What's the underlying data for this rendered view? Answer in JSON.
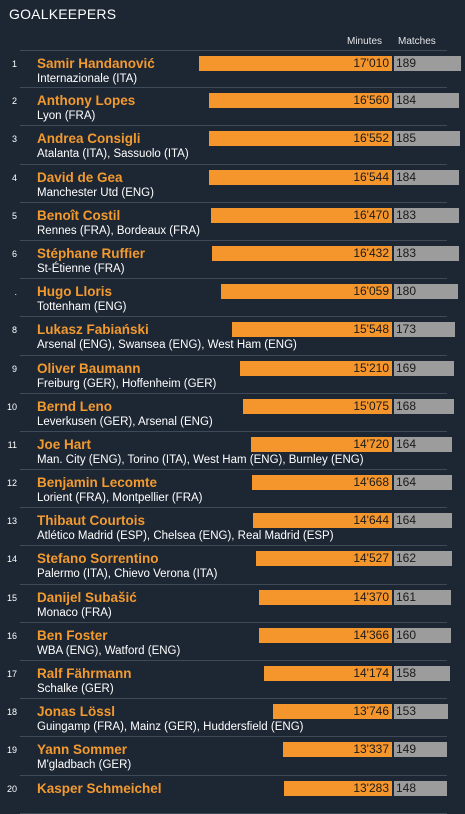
{
  "title": "GOALKEEPERS",
  "column_headers": {
    "minutes": "Minutes",
    "matches": "Matches"
  },
  "colors": {
    "background": "#1d2633",
    "minutes_bar": "#f5962d",
    "matches_bar": "#9c9c9c",
    "name": "#f39a2f"
  },
  "chart_data": {
    "type": "bar",
    "orientation": "horizontal",
    "title": "GOALKEEPERS",
    "series": [
      {
        "name": "Minutes",
        "values": [
          17010,
          16560,
          16552,
          16544,
          16470,
          16432,
          16059,
          15548,
          15210,
          15075,
          14720,
          14668,
          14644,
          14527,
          14370,
          14366,
          14174,
          13746,
          13337,
          13283
        ]
      },
      {
        "name": "Matches",
        "values": [
          189,
          184,
          185,
          184,
          183,
          183,
          180,
          173,
          169,
          168,
          164,
          164,
          164,
          162,
          161,
          160,
          158,
          153,
          149,
          148
        ]
      }
    ],
    "rows": [
      {
        "rank": "1",
        "name": "Samir Handanović",
        "clubs": "Internazionale (ITA)",
        "minutes": 17010,
        "minutes_label": "17'010",
        "matches": 189,
        "matches_label": "189"
      },
      {
        "rank": "2",
        "name": "Anthony Lopes",
        "clubs": "Lyon (FRA)",
        "minutes": 16560,
        "minutes_label": "16'560",
        "matches": 184,
        "matches_label": "184"
      },
      {
        "rank": "3",
        "name": "Andrea Consigli",
        "clubs": "Atalanta (ITA), Sassuolo (ITA)",
        "minutes": 16552,
        "minutes_label": "16'552",
        "matches": 185,
        "matches_label": "185"
      },
      {
        "rank": "4",
        "name": "David de Gea",
        "clubs": "Manchester Utd (ENG)",
        "minutes": 16544,
        "minutes_label": "16'544",
        "matches": 184,
        "matches_label": "184"
      },
      {
        "rank": "5",
        "name": "Benoît Costil",
        "clubs": "Rennes (FRA), Bordeaux (FRA)",
        "minutes": 16470,
        "minutes_label": "16'470",
        "matches": 183,
        "matches_label": "183"
      },
      {
        "rank": "6",
        "name": "Stéphane Ruffier",
        "clubs": "St-Étienne (FRA)",
        "minutes": 16432,
        "minutes_label": "16'432",
        "matches": 183,
        "matches_label": "183"
      },
      {
        "rank": ".",
        "name": "Hugo Lloris",
        "clubs": "Tottenham (ENG)",
        "minutes": 16059,
        "minutes_label": "16'059",
        "matches": 180,
        "matches_label": "180"
      },
      {
        "rank": "8",
        "name": "Lukasz Fabiański",
        "clubs": "Arsenal (ENG), Swansea (ENG), West Ham (ENG)",
        "minutes": 15548,
        "minutes_label": "15'548",
        "matches": 173,
        "matches_label": "173"
      },
      {
        "rank": "9",
        "name": "Oliver Baumann",
        "clubs": "Freiburg (GER), Hoffenheim (GER)",
        "minutes": 15210,
        "minutes_label": "15'210",
        "matches": 169,
        "matches_label": "169"
      },
      {
        "rank": "10",
        "name": "Bernd Leno",
        "clubs": "Leverkusen (GER), Arsenal (ENG)",
        "minutes": 15075,
        "minutes_label": "15'075",
        "matches": 168,
        "matches_label": "168"
      },
      {
        "rank": "11",
        "name": "Joe Hart",
        "clubs": "Man. City (ENG), Torino (ITA), West Ham (ENG), Burnley (ENG)",
        "minutes": 14720,
        "minutes_label": "14'720",
        "matches": 164,
        "matches_label": "164"
      },
      {
        "rank": "12",
        "name": "Benjamin Lecomte",
        "clubs": "Lorient (FRA), Montpellier (FRA)",
        "minutes": 14668,
        "minutes_label": "14'668",
        "matches": 164,
        "matches_label": "164"
      },
      {
        "rank": "13",
        "name": "Thibaut Courtois",
        "clubs": "Atlético Madrid (ESP), Chelsea (ENG), Real Madrid (ESP)",
        "minutes": 14644,
        "minutes_label": "14'644",
        "matches": 164,
        "matches_label": "164"
      },
      {
        "rank": "14",
        "name": "Stefano Sorrentino",
        "clubs": "Palermo (ITA), Chievo Verona (ITA)",
        "minutes": 14527,
        "minutes_label": "14'527",
        "matches": 162,
        "matches_label": "162"
      },
      {
        "rank": "15",
        "name": "Danijel Subašić",
        "clubs": "Monaco (FRA)",
        "minutes": 14370,
        "minutes_label": "14'370",
        "matches": 161,
        "matches_label": "161"
      },
      {
        "rank": "16",
        "name": "Ben Foster",
        "clubs": "WBA (ENG), Watford (ENG)",
        "minutes": 14366,
        "minutes_label": "14'366",
        "matches": 160,
        "matches_label": "160"
      },
      {
        "rank": "17",
        "name": "Ralf Fährmann",
        "clubs": "Schalke (GER)",
        "minutes": 14174,
        "minutes_label": "14'174",
        "matches": 158,
        "matches_label": "158"
      },
      {
        "rank": "18",
        "name": "Jonas Lössl",
        "clubs": "Guingamp (FRA), Mainz (GER), Huddersfield (ENG)",
        "minutes": 13746,
        "minutes_label": "13'746",
        "matches": 153,
        "matches_label": "153"
      },
      {
        "rank": "19",
        "name": "Yann Sommer",
        "clubs": "M'gladbach (GER)",
        "minutes": 13337,
        "minutes_label": "13'337",
        "matches": 149,
        "matches_label": "149"
      },
      {
        "rank": "20",
        "name": "Kasper Schmeichel",
        "clubs": "",
        "minutes": 13283,
        "minutes_label": "13'283",
        "matches": 148,
        "matches_label": "148"
      }
    ]
  }
}
